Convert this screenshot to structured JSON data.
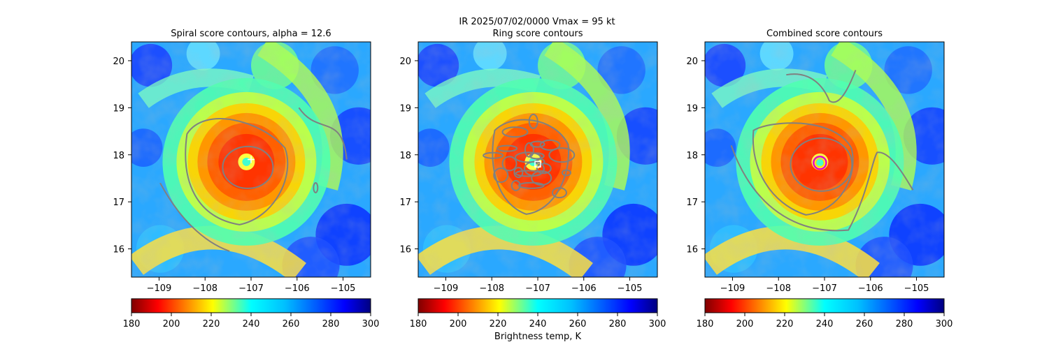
{
  "figure": {
    "suptitle_line1": "IR  2025/07/02/0000    Vmax = 95 kt",
    "colorbar_label": "Brightness temp, K"
  },
  "chart_data": [
    {
      "type": "heatmap",
      "title": "Spiral score contours, alpha = 12.6",
      "xlim": [
        -109.6,
        -104.4
      ],
      "ylim": [
        15.4,
        20.4
      ],
      "x_ticks": [
        -109,
        -108,
        -107,
        -106,
        -105
      ],
      "x_tick_labels": [
        "−109",
        "−108",
        "−107",
        "−106",
        "−105"
      ],
      "y_ticks": [
        16,
        17,
        18,
        19,
        20
      ],
      "y_tick_labels": [
        "16",
        "17",
        "18",
        "19",
        "20"
      ],
      "center": {
        "lon": -107.1,
        "lat": 17.85
      },
      "contour_color": "#808080",
      "marker": {
        "type": "plus",
        "lon": -107.0,
        "lat": 17.9,
        "color": "#ffffff"
      }
    },
    {
      "type": "heatmap",
      "title": "Ring score contours",
      "xlim": [
        -109.6,
        -104.4
      ],
      "ylim": [
        15.4,
        20.4
      ],
      "x_ticks": [
        -109,
        -108,
        -107,
        -106,
        -105
      ],
      "x_tick_labels": [
        "−109",
        "−108",
        "−107",
        "−106",
        "−105"
      ],
      "y_ticks": [
        16,
        17,
        18,
        19,
        20
      ],
      "y_tick_labels": [
        "16",
        "17",
        "18",
        "19",
        "20"
      ],
      "center": {
        "lon": -107.1,
        "lat": 17.85
      },
      "contour_color": "#808080",
      "marker": {
        "type": "square",
        "lon": -107.0,
        "lat": 17.8,
        "color": "#ffffff"
      }
    },
    {
      "type": "heatmap",
      "title": "Combined score contours",
      "xlim": [
        -109.6,
        -104.4
      ],
      "ylim": [
        15.4,
        20.4
      ],
      "x_ticks": [
        -109,
        -108,
        -107,
        -106,
        -105
      ],
      "x_tick_labels": [
        "−109",
        "−108",
        "−107",
        "−106",
        "−105"
      ],
      "y_ticks": [
        16,
        17,
        18,
        19,
        20
      ],
      "y_tick_labels": [
        "16",
        "17",
        "18",
        "19",
        "20"
      ],
      "center": {
        "lon": -107.1,
        "lat": 17.85
      },
      "contour_color": "#808080",
      "marker": {
        "type": "circle",
        "lon": -107.1,
        "lat": 17.83,
        "color": "#e600c8",
        "inner_color": "#ffd400"
      }
    }
  ],
  "colorbar": {
    "cmap": "jet_r",
    "range": [
      180,
      300
    ],
    "ticks": [
      180,
      200,
      220,
      240,
      260,
      280,
      300
    ],
    "tick_labels": [
      "180",
      "200",
      "220",
      "240",
      "260",
      "280",
      "300"
    ]
  }
}
